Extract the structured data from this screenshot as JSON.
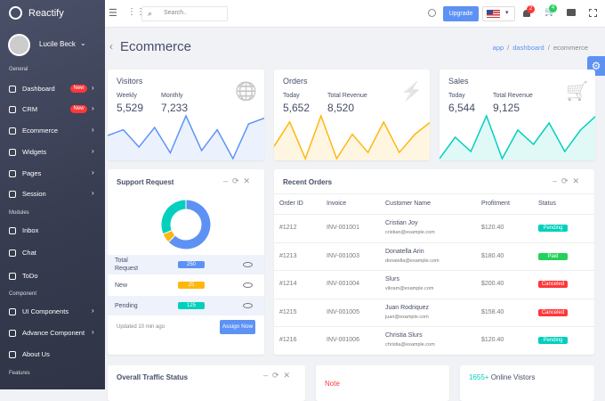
{
  "brand": "Reactify",
  "user": "Lucile Beck",
  "sidebar": [
    {
      "title": "General",
      "items": [
        {
          "label": "Dashboard",
          "badge": "New"
        },
        {
          "label": "CRM",
          "badge": "New"
        },
        {
          "label": "Ecommerce"
        },
        {
          "label": "Widgets"
        },
        {
          "label": "Pages"
        },
        {
          "label": "Session"
        }
      ]
    },
    {
      "title": "Modules",
      "items": [
        {
          "label": "Inbox"
        },
        {
          "label": "Chat"
        },
        {
          "label": "ToDo"
        }
      ]
    },
    {
      "title": "Component",
      "items": [
        {
          "label": "UI Components"
        },
        {
          "label": "Advance Component"
        },
        {
          "label": "About Us"
        }
      ]
    },
    {
      "title": "Features",
      "items": []
    }
  ],
  "topbar": {
    "search": "Search..",
    "upgrade": "Upgrade",
    "notifications": "2",
    "cart": "4"
  },
  "page": {
    "title": "Ecommerce",
    "breadcrumb": [
      "app",
      "dashboard",
      "ecommerce"
    ]
  },
  "stats": [
    {
      "title": "Visitors",
      "color": "#5d92f4",
      "metrics": [
        {
          "label": "Weekly",
          "value": "5,529"
        },
        {
          "label": "Monthly",
          "value": "7,233"
        }
      ],
      "sparkline": [
        25,
        30,
        15,
        32,
        10,
        42,
        12,
        30,
        5,
        35,
        40
      ]
    },
    {
      "title": "Orders",
      "color": "#ffb70f",
      "metrics": [
        {
          "label": "Today",
          "value": "5,652"
        },
        {
          "label": "Total Revenue",
          "value": "8,520"
        }
      ],
      "sparkline": [
        20,
        40,
        10,
        45,
        10,
        30,
        15,
        40,
        15,
        30,
        40
      ]
    },
    {
      "title": "Sales",
      "color": "#00d0bd",
      "metrics": [
        {
          "label": "Today",
          "value": "6,544"
        },
        {
          "label": "Total Revenue",
          "value": "9,125"
        }
      ],
      "sparkline": [
        10,
        25,
        15,
        40,
        10,
        30,
        20,
        35,
        15,
        30,
        40
      ]
    }
  ],
  "support": {
    "title": "Support Request",
    "rows": [
      {
        "label": "Total Request",
        "value": 250,
        "color": "#5d92f4"
      },
      {
        "label": "New",
        "value": 25,
        "color": "#ffb70f"
      },
      {
        "label": "Pending",
        "value": 125,
        "color": "#00d0bd"
      }
    ],
    "updated": "Updated 10 min ago",
    "button": "Assign Now"
  },
  "orders": {
    "title": "Recent Orders",
    "columns": [
      "Order ID",
      "Invoice",
      "Customer Name",
      "Profitment",
      "Status"
    ],
    "rows": [
      {
        "id": "#1212",
        "invoice": "INV-001001",
        "name": "Cristian Joy",
        "email": "cristian@example.com",
        "profit": "$120.40",
        "status": "Pending"
      },
      {
        "id": "#1213",
        "invoice": "INV-001003",
        "name": "Donatella Arin",
        "email": "donatella@example.com",
        "profit": "$180.40",
        "status": "Paid"
      },
      {
        "id": "#1214",
        "invoice": "INV-001004",
        "name": "Slurs",
        "email": "vikram@example.com",
        "profit": "$200.40",
        "status": "Canceled"
      },
      {
        "id": "#1215",
        "invoice": "INV-001005",
        "name": "Juan Rodriquez",
        "email": "juan@example.com",
        "profit": "$158.40",
        "status": "Canceled"
      },
      {
        "id": "#1216",
        "invoice": "INV-001006",
        "name": "Christia Slurs",
        "email": "christia@example.com",
        "profit": "$120.40",
        "status": "Pending"
      }
    ]
  },
  "bottom": {
    "traffic": "Overall Traffic Status",
    "note": "Note",
    "online_count": "1655+",
    "online_label": "Online Vistors"
  }
}
